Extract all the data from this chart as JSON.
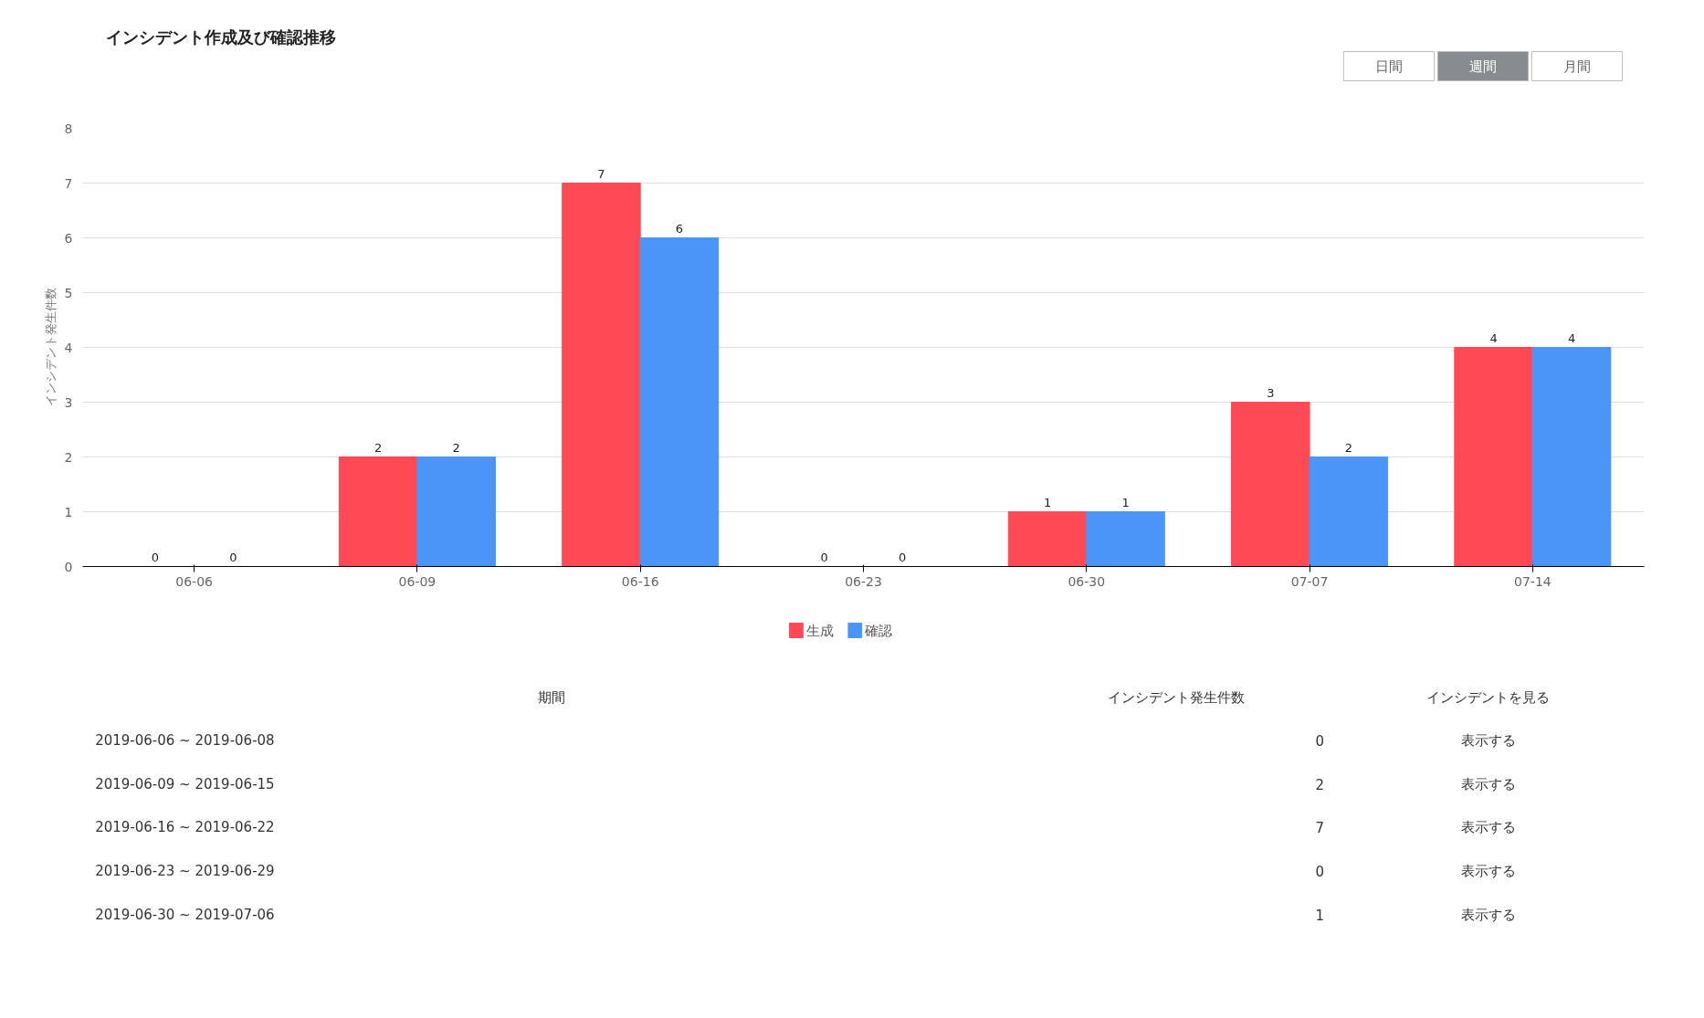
{
  "chart_data": [
    {
      "type": "bar",
      "title": "インシデント作成及び確認推移",
      "ylabel": "インシデント発生件数",
      "categories": [
        "06-06",
        "06-09",
        "06-16",
        "06-23",
        "06-30",
        "07-07",
        "07-14"
      ],
      "series": [
        {
          "name": "生成",
          "color": "#ff4a55",
          "values": [
            0,
            2,
            7,
            0,
            1,
            3,
            4
          ]
        },
        {
          "name": "確認",
          "color": "#4a95f7",
          "values": [
            0,
            2,
            6,
            0,
            1,
            2,
            4
          ]
        }
      ],
      "ylim": [
        0,
        8
      ],
      "yticks": [
        0,
        1,
        2,
        3,
        4,
        5,
        6,
        7,
        8
      ],
      "grid": "y",
      "legend": "bottom",
      "data_labels": true,
      "annotations": [
        "日間",
        "週間",
        "月間"
      ]
    },
    {
      "type": "other",
      "annotations": [
        "期間",
        "インシデント発生件数",
        "インシデントを見る",
        "2019-06-06 ~ 2019-06-08",
        "0",
        "表示する",
        "2019-06-09 ~ 2019-06-15",
        "2",
        "表示する",
        "2019-06-16 ~ 2019-06-22",
        "7",
        "表示する",
        "2019-06-23 ~ 2019-06-29",
        "0",
        "表示する",
        "2019-06-30 ~ 2019-07-06",
        "1",
        "表示する"
      ]
    }
  ]
}
